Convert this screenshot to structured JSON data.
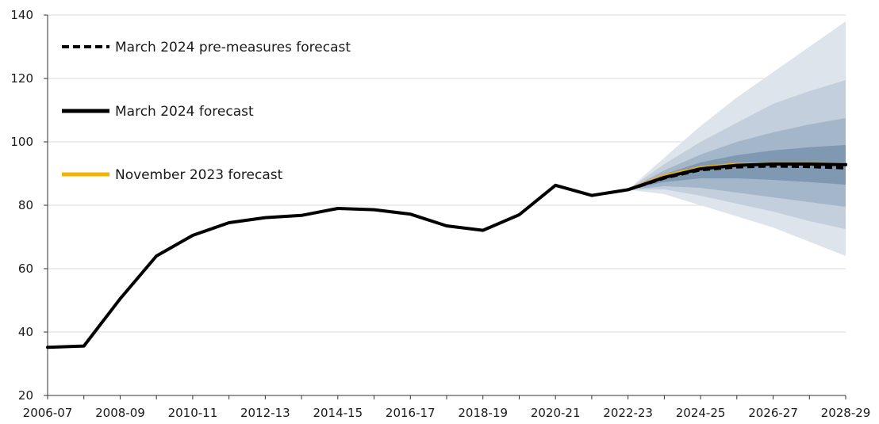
{
  "chart_data": {
    "type": "line",
    "title": "",
    "xlabel": "",
    "ylabel": "",
    "ylim": [
      20,
      140
    ],
    "yticks": [
      20,
      40,
      60,
      80,
      100,
      120,
      140
    ],
    "grid": true,
    "legend_placement": "top-left",
    "x": [
      "2006-07",
      "2007-08",
      "2008-09",
      "2009-10",
      "2010-11",
      "2011-12",
      "2012-13",
      "2013-14",
      "2014-15",
      "2015-16",
      "2016-17",
      "2017-18",
      "2018-19",
      "2019-20",
      "2020-21",
      "2021-22",
      "2022-23",
      "2023-24",
      "2024-25",
      "2025-26",
      "2026-27",
      "2027-28",
      "2028-29"
    ],
    "xtick_labels": [
      "2006-07",
      "2008-09",
      "2010-11",
      "2012-13",
      "2014-15",
      "2016-17",
      "2018-19",
      "2020-21",
      "2022-23",
      "2024-25",
      "2026-27",
      "2028-29"
    ],
    "series": [
      {
        "name": "March 2024 forecast",
        "style": "solid",
        "color": "#000000",
        "values": [
          35.2,
          35.6,
          50.5,
          64.0,
          70.5,
          74.5,
          76.1,
          76.8,
          79.0,
          78.6,
          77.2,
          73.5,
          72.1,
          77.0,
          86.3,
          83.1,
          84.9,
          88.8,
          91.5,
          92.6,
          93.0,
          93.0,
          92.8
        ]
      },
      {
        "name": "March 2024 pre-measures forecast",
        "style": "dashed",
        "color": "#000000",
        "values": [
          null,
          null,
          null,
          null,
          null,
          null,
          null,
          null,
          null,
          null,
          null,
          null,
          null,
          null,
          null,
          null,
          84.9,
          88.6,
          91.2,
          92.1,
          92.4,
          92.2,
          91.8
        ]
      },
      {
        "name": "November 2023 forecast",
        "style": "solid",
        "color": "#f0b400",
        "values": [
          null,
          null,
          null,
          null,
          null,
          null,
          null,
          null,
          null,
          null,
          null,
          null,
          null,
          null,
          null,
          null,
          84.9,
          89.3,
          91.9,
          92.9,
          93.1,
          93.1,
          93.0
        ]
      }
    ],
    "fan_bands": {
      "x_start": "2022-23",
      "colors": [
        "#dde4ec",
        "#c3cfdc",
        "#a4b6c9",
        "#7f99b3"
      ],
      "upper_outer": [
        84.9,
        95.0,
        105.0,
        114.0,
        122.0,
        130.0,
        138.0
      ],
      "lower_outer": [
        84.9,
        83.5,
        80.0,
        76.5,
        73.0,
        68.5,
        64.0
      ],
      "upper_2": [
        84.9,
        93.0,
        100.0,
        106.0,
        112.0,
        116.0,
        119.5
      ],
      "lower_2": [
        84.9,
        85.0,
        83.0,
        80.5,
        78.0,
        75.0,
        72.5
      ],
      "upper_3": [
        84.9,
        91.0,
        96.0,
        100.0,
        103.0,
        105.5,
        107.5
      ],
      "lower_3": [
        84.9,
        86.0,
        85.5,
        84.0,
        82.5,
        81.0,
        79.5
      ],
      "upper_4": [
        84.9,
        89.8,
        93.5,
        95.8,
        97.3,
        98.3,
        99.0
      ],
      "lower_4": [
        84.9,
        87.3,
        88.5,
        88.5,
        88.0,
        87.3,
        86.5
      ]
    }
  }
}
